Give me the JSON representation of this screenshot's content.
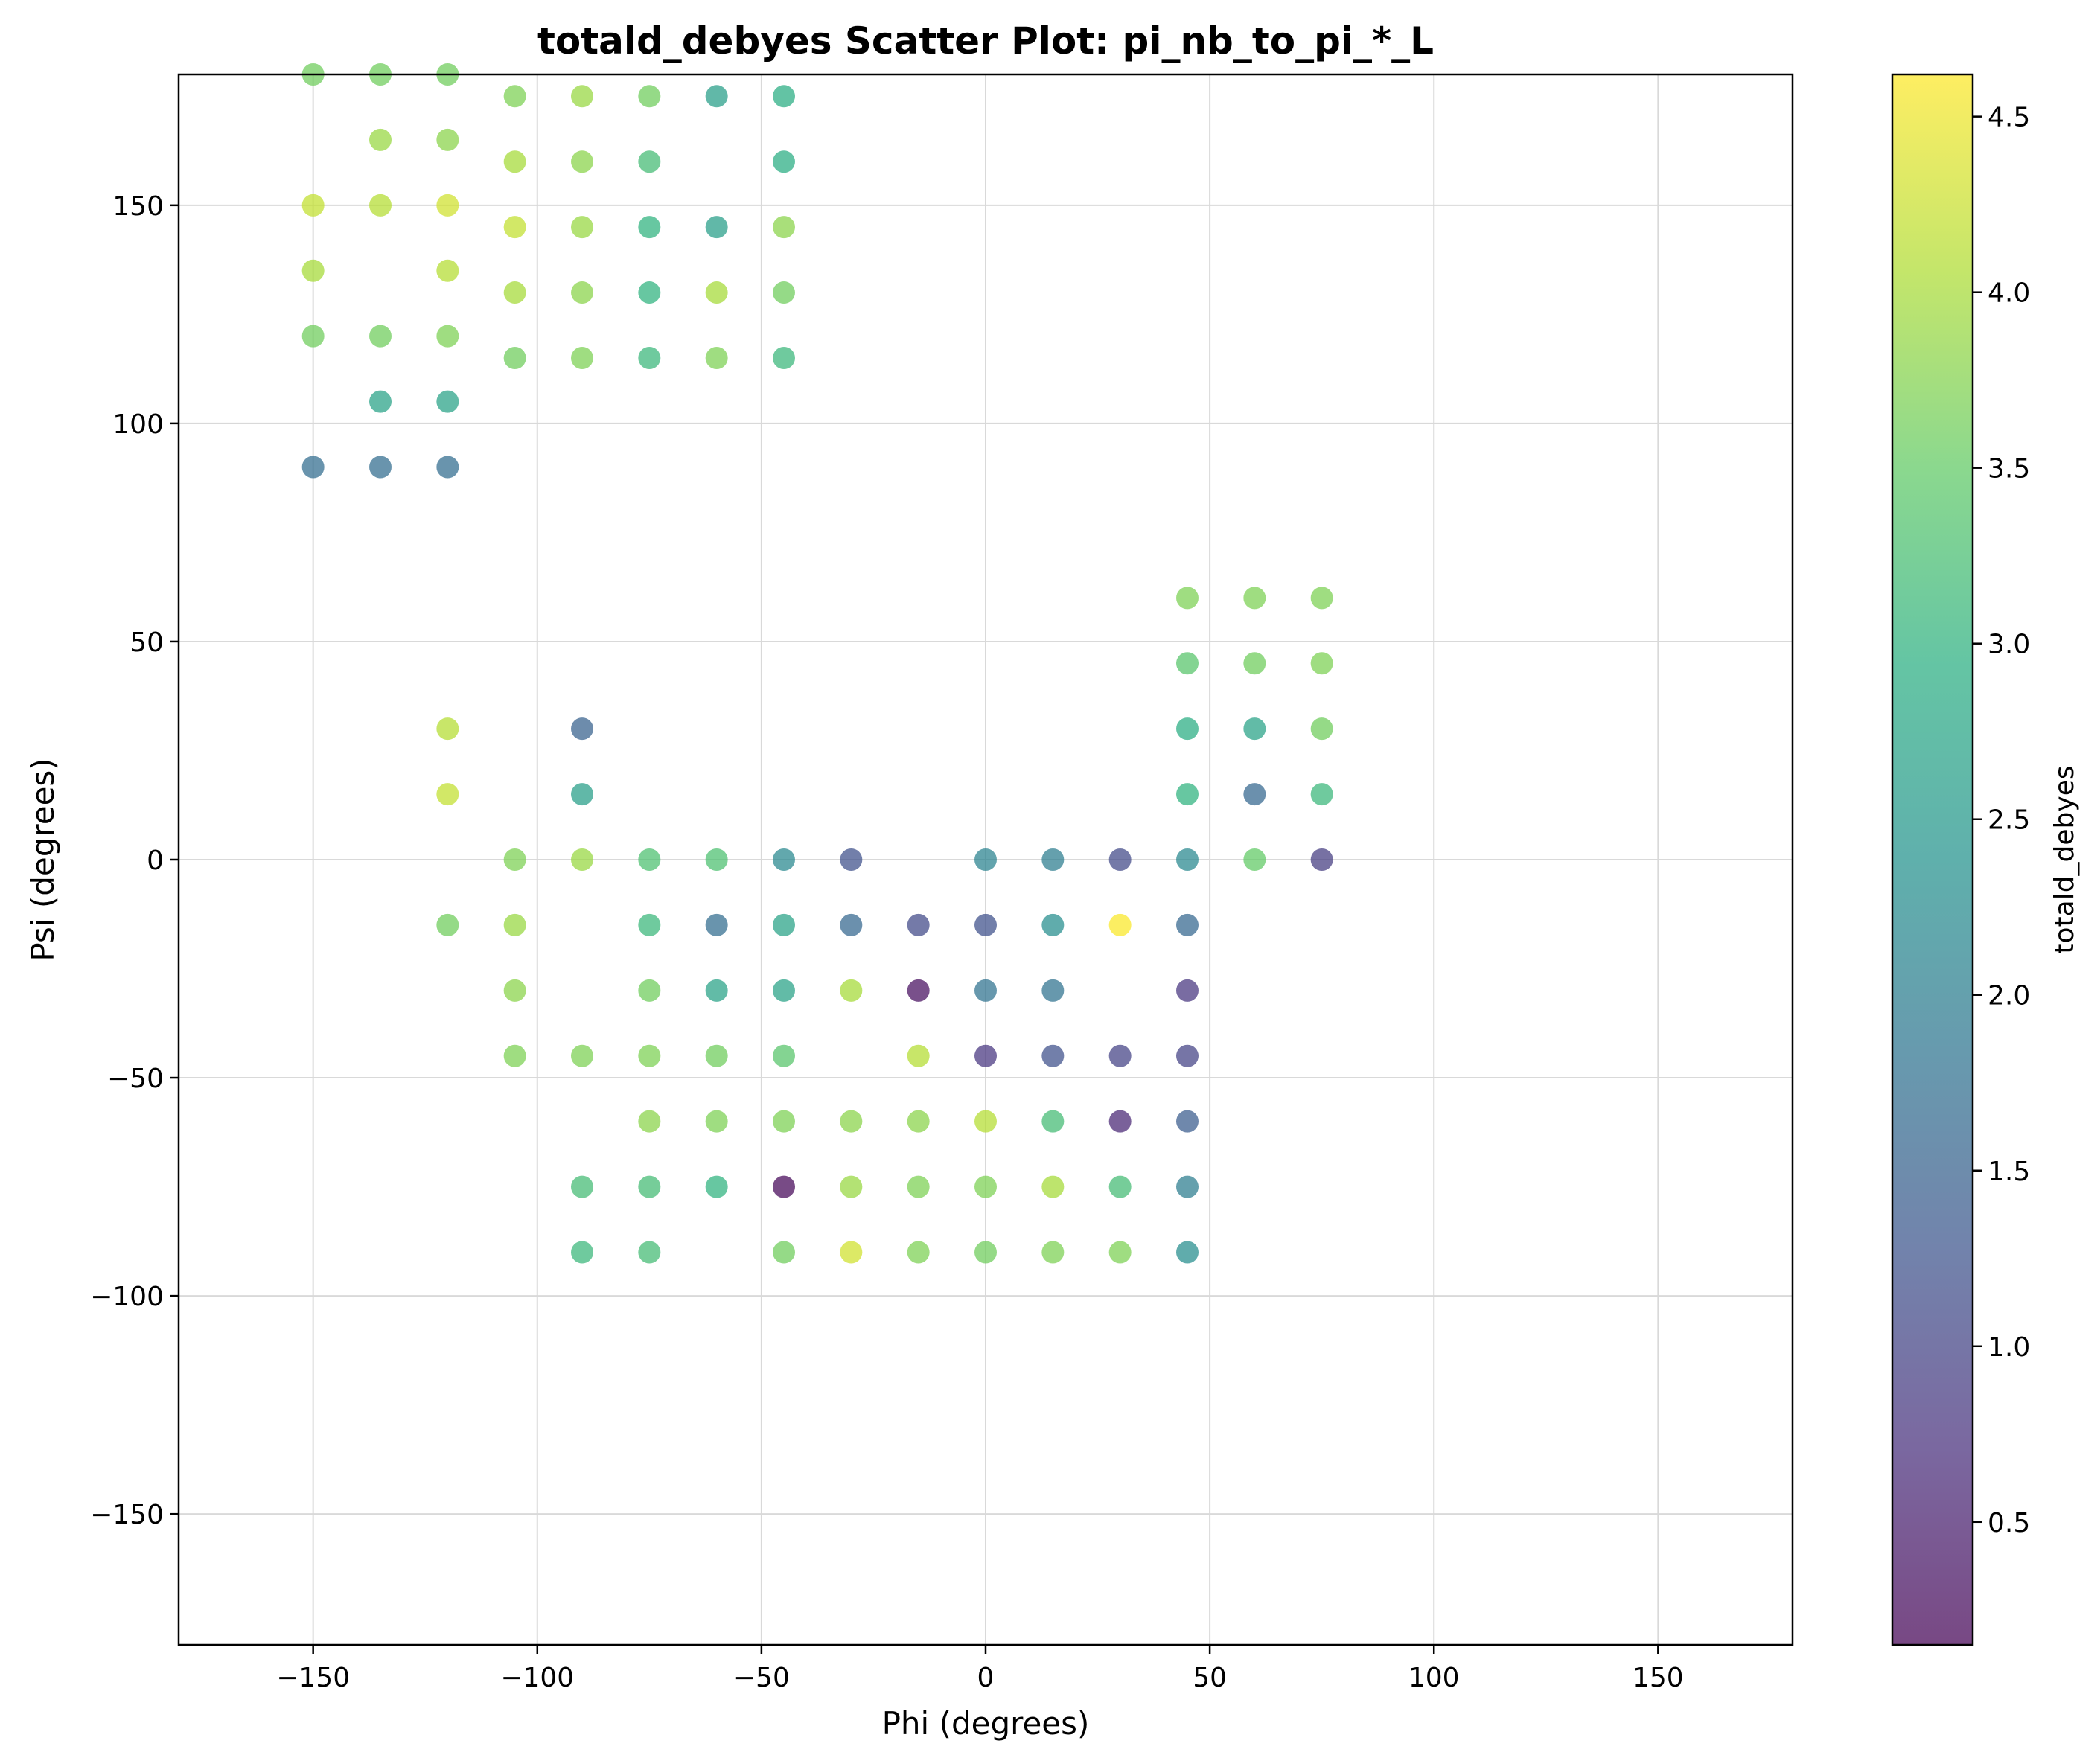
{
  "chart_data": {
    "type": "scatter",
    "title": "totald_debyes Scatter Plot: pi_nb_to_pi_*_L",
    "xlabel": "Phi (degrees)",
    "ylabel": "Psi (degrees)",
    "colorbar_label": "totald_debyes",
    "xlim": [
      -180,
      180
    ],
    "ylim": [
      -180,
      180
    ],
    "xticks": [
      -150,
      -100,
      -50,
      0,
      50,
      100,
      150
    ],
    "yticks": [
      -150,
      -100,
      -50,
      0,
      50,
      100,
      150
    ],
    "xtick_labels": [
      "−150",
      "−100",
      "−50",
      "0",
      "50",
      "100",
      "150"
    ],
    "ytick_labels": [
      "−150",
      "−100",
      "−50",
      "0",
      "50",
      "100",
      "150"
    ],
    "colorbar_range": [
      0.15,
      4.62
    ],
    "colorbar_ticks": [
      0.5,
      1.0,
      1.5,
      2.0,
      2.5,
      3.0,
      3.5,
      4.0,
      4.5
    ],
    "colorbar_tick_labels": [
      "0.5",
      "1.0",
      "1.5",
      "2.0",
      "2.5",
      "3.0",
      "3.5",
      "4.0",
      "4.5"
    ],
    "colormap": "viridis",
    "grid": true,
    "points": [
      [
        -150,
        180,
        3.6
      ],
      [
        -135,
        180,
        3.6
      ],
      [
        -120,
        180,
        3.6
      ],
      [
        -105,
        175,
        3.7
      ],
      [
        -90,
        175,
        3.9
      ],
      [
        -75,
        175,
        3.6
      ],
      [
        -60,
        175,
        2.6
      ],
      [
        -45,
        175,
        2.9
      ],
      [
        -135,
        165,
        3.9
      ],
      [
        -120,
        165,
        3.8
      ],
      [
        -105,
        160,
        4.0
      ],
      [
        -90,
        160,
        3.8
      ],
      [
        -75,
        160,
        3.2
      ],
      [
        -45,
        160,
        2.9
      ],
      [
        -150,
        150,
        4.2
      ],
      [
        -135,
        150,
        4.1
      ],
      [
        -120,
        150,
        4.3
      ],
      [
        -105,
        145,
        4.2
      ],
      [
        -90,
        145,
        3.9
      ],
      [
        -75,
        145,
        3.0
      ],
      [
        -60,
        145,
        2.6
      ],
      [
        -45,
        145,
        3.8
      ],
      [
        -150,
        135,
        4.0
      ],
      [
        -120,
        135,
        4.1
      ],
      [
        -105,
        130,
        4.0
      ],
      [
        -90,
        130,
        3.8
      ],
      [
        -75,
        130,
        3.0
      ],
      [
        -60,
        130,
        4.0
      ],
      [
        -45,
        130,
        3.6
      ],
      [
        -150,
        120,
        3.6
      ],
      [
        -135,
        120,
        3.6
      ],
      [
        -120,
        120,
        3.7
      ],
      [
        -105,
        115,
        3.6
      ],
      [
        -90,
        115,
        3.7
      ],
      [
        -75,
        115,
        3.1
      ],
      [
        -60,
        115,
        3.7
      ],
      [
        -45,
        115,
        3.1
      ],
      [
        -135,
        105,
        2.7
      ],
      [
        -120,
        105,
        2.7
      ],
      [
        -150,
        90,
        1.7
      ],
      [
        -135,
        90,
        1.7
      ],
      [
        -120,
        90,
        1.7
      ],
      [
        45,
        60,
        3.7
      ],
      [
        60,
        60,
        3.7
      ],
      [
        75,
        60,
        3.7
      ],
      [
        45,
        45,
        3.4
      ],
      [
        60,
        45,
        3.6
      ],
      [
        75,
        45,
        3.7
      ],
      [
        -120,
        30,
        4.1
      ],
      [
        -90,
        30,
        1.5
      ],
      [
        45,
        30,
        2.9
      ],
      [
        60,
        30,
        2.7
      ],
      [
        75,
        30,
        3.6
      ],
      [
        -120,
        15,
        4.2
      ],
      [
        -90,
        15,
        2.6
      ],
      [
        45,
        15,
        3.0
      ],
      [
        60,
        15,
        1.6
      ],
      [
        75,
        15,
        3.1
      ],
      [
        -105,
        0,
        3.7
      ],
      [
        -90,
        0,
        3.9
      ],
      [
        -75,
        0,
        3.3
      ],
      [
        -60,
        0,
        3.3
      ],
      [
        -45,
        0,
        2.2
      ],
      [
        -30,
        0,
        1.2
      ],
      [
        0,
        0,
        2.1
      ],
      [
        15,
        0,
        2.0
      ],
      [
        30,
        0,
        1.1
      ],
      [
        45,
        0,
        2.2
      ],
      [
        60,
        0,
        3.5
      ],
      [
        75,
        0,
        0.9
      ],
      [
        -120,
        -15,
        3.6
      ],
      [
        -105,
        -15,
        3.9
      ],
      [
        -75,
        -15,
        3.1
      ],
      [
        -60,
        -15,
        1.7
      ],
      [
        -45,
        -15,
        2.7
      ],
      [
        -30,
        -15,
        1.6
      ],
      [
        -15,
        -15,
        1.1
      ],
      [
        0,
        -15,
        1.2
      ],
      [
        15,
        -15,
        2.3
      ],
      [
        30,
        -15,
        4.6
      ],
      [
        45,
        -15,
        1.6
      ],
      [
        -105,
        -30,
        3.8
      ],
      [
        -75,
        -30,
        3.6
      ],
      [
        -60,
        -30,
        2.7
      ],
      [
        -45,
        -30,
        2.7
      ],
      [
        -30,
        -30,
        4.0
      ],
      [
        -15,
        -30,
        0.3
      ],
      [
        0,
        -30,
        1.8
      ],
      [
        15,
        -30,
        1.8
      ],
      [
        45,
        -30,
        0.8
      ],
      [
        -105,
        -45,
        3.7
      ],
      [
        -90,
        -45,
        3.7
      ],
      [
        -75,
        -45,
        3.7
      ],
      [
        -60,
        -45,
        3.6
      ],
      [
        -45,
        -45,
        3.4
      ],
      [
        -15,
        -45,
        4.1
      ],
      [
        0,
        -45,
        0.8
      ],
      [
        15,
        -45,
        1.2
      ],
      [
        30,
        -45,
        1.0
      ],
      [
        45,
        -45,
        1.0
      ],
      [
        -75,
        -60,
        3.8
      ],
      [
        -60,
        -60,
        3.7
      ],
      [
        -45,
        -60,
        3.7
      ],
      [
        -30,
        -60,
        3.8
      ],
      [
        -15,
        -60,
        3.8
      ],
      [
        0,
        -60,
        4.1
      ],
      [
        15,
        -60,
        3.2
      ],
      [
        30,
        -60,
        0.6
      ],
      [
        45,
        -60,
        1.4
      ],
      [
        -90,
        -75,
        3.2
      ],
      [
        -75,
        -75,
        3.2
      ],
      [
        -60,
        -75,
        3.0
      ],
      [
        -45,
        -75,
        0.2
      ],
      [
        -30,
        -75,
        3.9
      ],
      [
        -15,
        -75,
        3.7
      ],
      [
        0,
        -75,
        3.7
      ],
      [
        15,
        -75,
        4.0
      ],
      [
        30,
        -75,
        3.2
      ],
      [
        45,
        -75,
        2.0
      ],
      [
        -90,
        -90,
        3.1
      ],
      [
        -75,
        -90,
        3.2
      ],
      [
        -45,
        -90,
        3.6
      ],
      [
        -30,
        -90,
        4.3
      ],
      [
        -15,
        -90,
        3.7
      ],
      [
        0,
        -90,
        3.6
      ],
      [
        15,
        -90,
        3.7
      ],
      [
        30,
        -90,
        3.7
      ],
      [
        45,
        -90,
        2.3
      ]
    ]
  }
}
